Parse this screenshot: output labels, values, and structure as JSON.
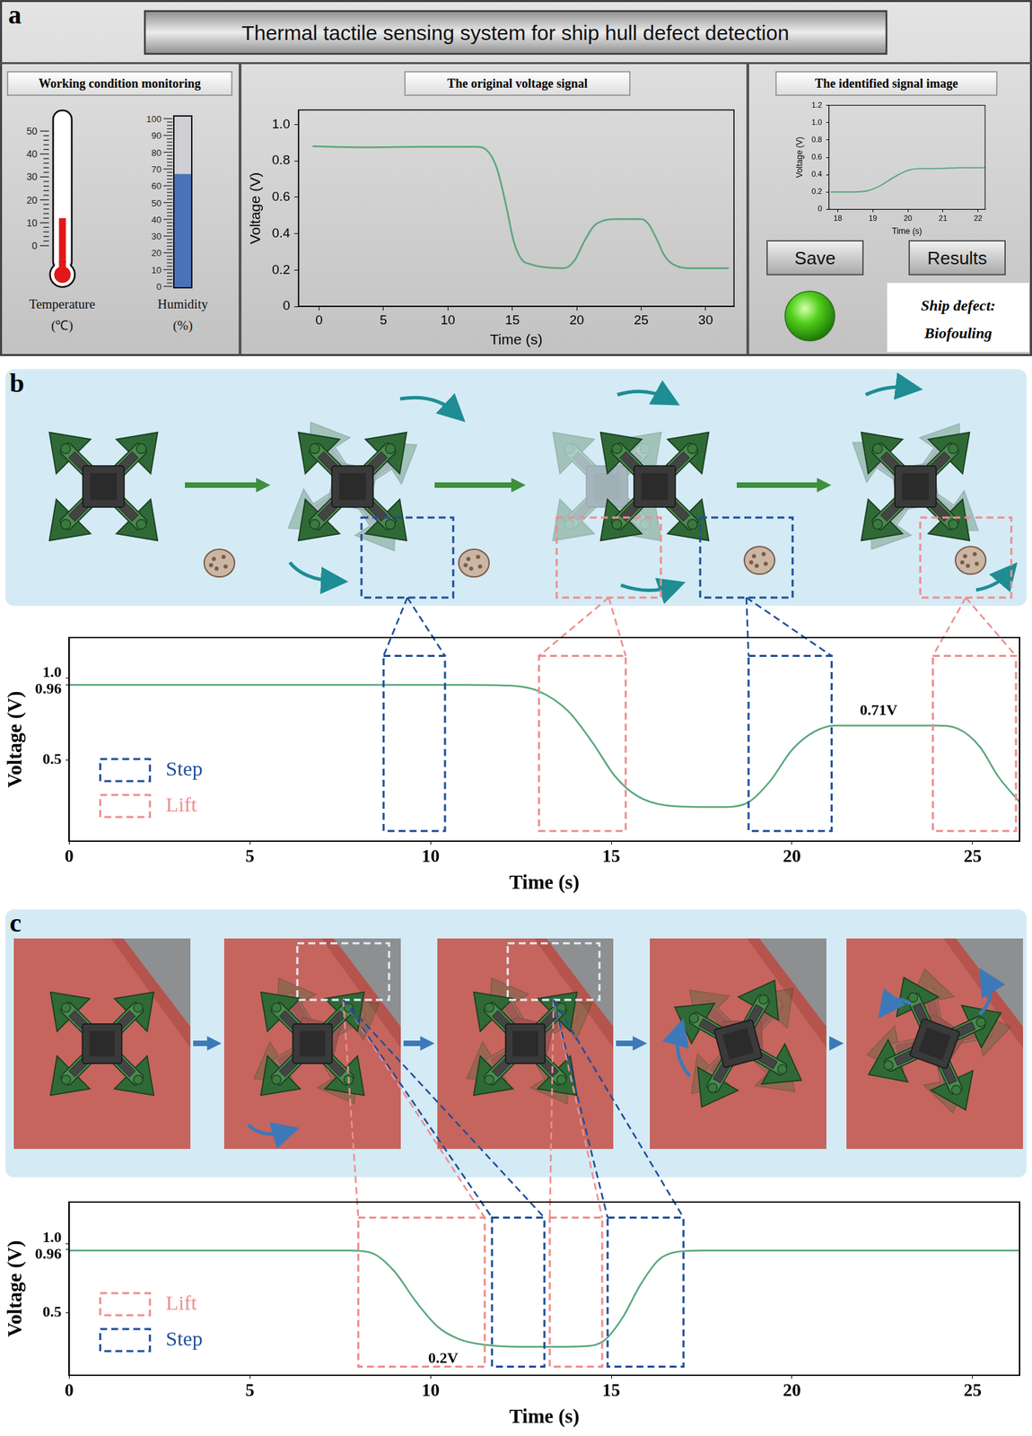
{
  "panel_labels": [
    "a",
    "b",
    "c"
  ],
  "header": "Thermal tactile sensing system for ship hull defect detection",
  "monitor": {
    "title": "Working condition monitoring",
    "temperature": {
      "label": "Temperature",
      "unit": "(℃)",
      "ticks": [
        0,
        10,
        20,
        30,
        40,
        50
      ],
      "value": 12,
      "color": "#e01818"
    },
    "humidity": {
      "label": "Humidity",
      "unit": "(%)",
      "ticks": [
        0,
        10,
        20,
        30,
        40,
        50,
        60,
        70,
        80,
        90,
        100
      ],
      "value": 67,
      "color": "#4a72b8"
    }
  },
  "buttons": [
    "Save",
    "Results"
  ],
  "result": {
    "label": "Ship defect:",
    "value": "Biofouling"
  },
  "chart_data": [
    {
      "type": "line",
      "title": "The original voltage signal",
      "x_label": "Time (s)",
      "y_label": "Voltage (V)",
      "x": [
        -0.5,
        4,
        8,
        12.2,
        13,
        13.8,
        14.5,
        15.1,
        15.7,
        16.5,
        17.5,
        19,
        19.8,
        20.6,
        21.3,
        22,
        23,
        25,
        25.6,
        26.2,
        26.8,
        27.5,
        29,
        31.8
      ],
      "values": [
        0.88,
        0.875,
        0.878,
        0.878,
        0.86,
        0.76,
        0.56,
        0.36,
        0.26,
        0.23,
        0.215,
        0.21,
        0.25,
        0.36,
        0.44,
        0.47,
        0.48,
        0.48,
        0.45,
        0.37,
        0.28,
        0.23,
        0.21,
        0.21
      ],
      "color": "#5aa77c",
      "xlim": [
        -1.6,
        32.2
      ],
      "ylim": [
        0,
        1.08
      ],
      "xticks": [
        0,
        5,
        10,
        15,
        20,
        25,
        30
      ],
      "yticks": [
        0,
        0.2,
        0.4,
        0.6,
        0.8,
        {
          "value": 1,
          "label": "1.0"
        }
      ],
      "grid": false
    },
    {
      "type": "line",
      "title": "The identified signal image",
      "x_label": "Time (s)",
      "y_label": "Voltage (V)",
      "x": [
        17.8,
        18.3,
        18.8,
        19.2,
        19.6,
        20,
        20.3,
        20.8,
        21.5,
        22.2
      ],
      "values": [
        0.2,
        0.2,
        0.21,
        0.27,
        0.37,
        0.45,
        0.47,
        0.47,
        0.48,
        0.48
      ],
      "color": "#5aa77c",
      "xlim": [
        17.75,
        22.2
      ],
      "ylim": [
        0,
        1.2
      ],
      "xticks": [
        18,
        19,
        20,
        21,
        22
      ],
      "yticks": [
        0,
        0.2,
        0.4,
        0.6,
        0.8,
        {
          "value": 1,
          "label": "1.0"
        },
        1.2
      ],
      "grid": false
    },
    {
      "type": "line",
      "x_label": "Time (s)",
      "y_label": "Voltage (V)",
      "x": [
        0,
        4,
        8,
        11,
        12.2,
        13,
        13.8,
        14.5,
        15.1,
        15.7,
        16.5,
        17.5,
        18.2,
        18.8,
        19.4,
        20,
        20.6,
        21.2,
        22.5,
        24,
        24.6,
        25.2,
        25.7,
        26.3
      ],
      "values": [
        0.96,
        0.96,
        0.96,
        0.96,
        0.955,
        0.92,
        0.8,
        0.6,
        0.4,
        0.28,
        0.22,
        0.21,
        0.21,
        0.24,
        0.37,
        0.56,
        0.67,
        0.71,
        0.71,
        0.71,
        0.69,
        0.58,
        0.4,
        0.24
      ],
      "color": "#5aa77c",
      "xlim": [
        0,
        26.3
      ],
      "ylim": [
        0,
        1.25
      ],
      "xticks": [
        0,
        5,
        10,
        15,
        20,
        25
      ],
      "yticks": [
        0.5,
        0.96,
        {
          "value": 1,
          "label": "1.0"
        }
      ],
      "grid": false,
      "regions": [
        {
          "name": "Step",
          "color": "#1f4e9a",
          "x": [
            8.7,
            10.4
          ]
        },
        {
          "name": "Lift",
          "color": "#ee8e8e",
          "x": [
            13.0,
            15.4
          ]
        },
        {
          "name": "Step",
          "color": "#1f4e9a",
          "x": [
            18.8,
            21.1
          ]
        },
        {
          "name": "Lift",
          "color": "#ee8e8e",
          "x": [
            23.9,
            26.2
          ]
        }
      ],
      "legend": "lower left",
      "annotations": [
        {
          "text": "0.71V",
          "x": 22.4,
          "y": 0.8
        }
      ]
    },
    {
      "type": "line",
      "x_label": "Time (s)",
      "y_label": "Voltage (V)",
      "x": [
        0,
        4,
        7.8,
        8.4,
        9,
        9.6,
        10.2,
        10.8,
        11.5,
        12.5,
        13.5,
        14.3,
        14.8,
        15.3,
        15.8,
        16.3,
        16.8,
        17.5,
        20,
        26.3
      ],
      "values": [
        0.95,
        0.95,
        0.95,
        0.93,
        0.8,
        0.58,
        0.4,
        0.31,
        0.27,
        0.255,
        0.255,
        0.26,
        0.3,
        0.46,
        0.7,
        0.88,
        0.94,
        0.95,
        0.95,
        0.95
      ],
      "color": "#5aa77c",
      "xlim": [
        0,
        26.3
      ],
      "ylim": [
        0.05,
        1.3
      ],
      "xticks": [
        0,
        5,
        10,
        15,
        20,
        25
      ],
      "yticks": [
        0.5,
        0.96,
        {
          "value": 1,
          "label": "1.0"
        }
      ],
      "grid": false,
      "regions": [
        {
          "name": "Lift",
          "color": "#ee8e8e",
          "x": [
            8.0,
            11.5
          ]
        },
        {
          "name": "Step",
          "color": "#1f4e9a",
          "x": [
            11.7,
            13.15
          ]
        },
        {
          "name": "Lift",
          "color": "#ee8e8e",
          "x": [
            13.3,
            14.75
          ]
        },
        {
          "name": "Step",
          "color": "#1f4e9a",
          "x": [
            14.9,
            17.0
          ]
        }
      ],
      "legend": "lower left",
      "annotations": [
        {
          "text": "0.2V",
          "x": 10.35,
          "y": 0.17
        }
      ]
    }
  ]
}
